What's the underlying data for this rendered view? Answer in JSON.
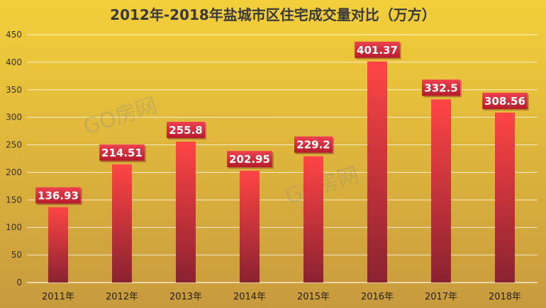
{
  "chart_data": {
    "type": "bar",
    "title": "2012年-2018年盐城市区住宅成交量对比（万方）",
    "categories": [
      "2011年",
      "2012年",
      "2013年",
      "2014年",
      "2015年",
      "2016年",
      "2017年",
      "2018年"
    ],
    "values": [
      136.93,
      214.51,
      255.8,
      202.95,
      229.2,
      401.37,
      332.5,
      308.56
    ],
    "data_labels": [
      "136.93",
      "214.51",
      "255.8",
      "202.95",
      "229.2",
      "401.37",
      "332.5",
      "308.56"
    ],
    "xlabel": "",
    "ylabel": "",
    "ylim": [
      0,
      450
    ],
    "yticks": [
      0,
      50,
      100,
      150,
      200,
      250,
      300,
      350,
      400,
      450
    ],
    "grid": true,
    "legend": "none",
    "colors": {
      "background_top": "#f3cf3a",
      "background_bottom": "#c89a3e",
      "bar_top": "#ff4545",
      "bar_bottom": "#8a2230",
      "label_box_top": "#ef4050",
      "label_box_bottom": "#b51c2c",
      "gridline": "#ffffff"
    }
  },
  "watermark": "GO房网"
}
